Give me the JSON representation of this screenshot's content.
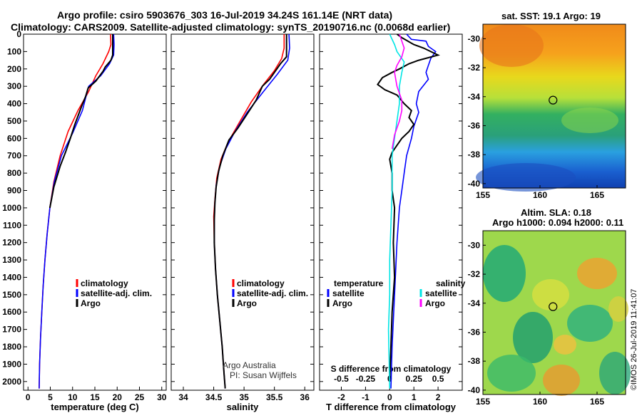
{
  "header": {
    "line1": "Argo profile: csiro 5903676_303 16-Jul-2019 34.24S 161.14E (NRT data)",
    "line2": "Climatology: CARS2009. Satellite-adjusted climatology: synTS_20190716.nc (0.0068d earlier)"
  },
  "credits": {
    "line1": "Argo Australia",
    "line2": "PI: Susan Wijffels"
  },
  "watermark": "©IMOS 26-Jul-2019 11:41:07",
  "colors": {
    "climatology": "#ff0000",
    "satellite": "#0000ff",
    "argo": "#000000",
    "salinity_satellite": "#00e5e5",
    "salinity_argo": "#ff00ff"
  },
  "chart_data": [
    {
      "type": "line",
      "panel": "temperature",
      "xlabel": "temperature (deg C)",
      "xlim": [
        -1,
        31
      ],
      "xticks": [
        0,
        5,
        10,
        15,
        20,
        25,
        30
      ],
      "ylim": [
        2050,
        0
      ],
      "yticks": [
        0,
        100,
        200,
        300,
        400,
        500,
        600,
        700,
        800,
        900,
        1000,
        1100,
        1200,
        1300,
        1400,
        1500,
        1600,
        1700,
        1800,
        1900,
        2000
      ],
      "legend": [
        "climatology",
        "satellite-adj. clim.",
        "Argo"
      ],
      "series": [
        {
          "name": "climatology",
          "color": "#ff0000",
          "points": [
            [
              18.5,
              0
            ],
            [
              18.6,
              60
            ],
            [
              18.1,
              100
            ],
            [
              16.8,
              170
            ],
            [
              15.2,
              240
            ],
            [
              13.6,
              330
            ],
            [
              11.2,
              440
            ],
            [
              9.0,
              560
            ],
            [
              7.2,
              700
            ],
            [
              5.8,
              850
            ],
            [
              4.9,
              1000
            ],
            [
              4.3,
              1150
            ],
            [
              3.8,
              1300
            ],
            [
              3.4,
              1450
            ],
            [
              3.1,
              1600
            ],
            [
              2.8,
              1750
            ],
            [
              2.6,
              1900
            ],
            [
              2.5,
              2040
            ]
          ]
        },
        {
          "name": "satellite-adj. clim.",
          "color": "#0000ff",
          "points": [
            [
              19.2,
              0
            ],
            [
              19.3,
              60
            ],
            [
              19.2,
              120
            ],
            [
              18.3,
              170
            ],
            [
              16.3,
              240
            ],
            [
              13.6,
              300
            ],
            [
              13.0,
              360
            ],
            [
              12.2,
              440
            ],
            [
              10.0,
              570
            ],
            [
              7.5,
              700
            ],
            [
              5.9,
              850
            ],
            [
              4.9,
              1000
            ],
            [
              4.3,
              1150
            ],
            [
              3.8,
              1300
            ],
            [
              3.4,
              1450
            ],
            [
              3.1,
              1600
            ],
            [
              2.8,
              1750
            ],
            [
              2.6,
              1900
            ],
            [
              2.5,
              2040
            ]
          ]
        },
        {
          "name": "Argo",
          "color": "#000000",
          "points": [
            [
              19.0,
              0
            ],
            [
              19.0,
              60
            ],
            [
              19.0,
              120
            ],
            [
              18.6,
              150
            ],
            [
              17.3,
              190
            ],
            [
              16.8,
              215
            ],
            [
              15.2,
              270
            ],
            [
              13.5,
              310
            ],
            [
              12.9,
              360
            ],
            [
              12.1,
              410
            ],
            [
              10.5,
              520
            ],
            [
              9.5,
              600
            ],
            [
              8.4,
              680
            ],
            [
              7.2,
              760
            ],
            [
              5.8,
              880
            ],
            [
              4.9,
              1000
            ]
          ]
        }
      ]
    },
    {
      "type": "line",
      "panel": "salinity",
      "xlabel": "salinity",
      "xlim": [
        33.8,
        36.15
      ],
      "xticks": [
        34,
        34.5,
        35,
        35.5,
        36
      ],
      "ylim": [
        2050,
        0
      ],
      "legend": [
        "climatology",
        "satellite-adj. clim.",
        "Argo"
      ],
      "series": [
        {
          "name": "climatology",
          "color": "#ff0000",
          "points": [
            [
              35.66,
              0
            ],
            [
              35.66,
              80
            ],
            [
              35.62,
              140
            ],
            [
              35.5,
              210
            ],
            [
              35.32,
              290
            ],
            [
              35.12,
              390
            ],
            [
              34.92,
              510
            ],
            [
              34.74,
              620
            ],
            [
              34.62,
              720
            ],
            [
              34.55,
              830
            ],
            [
              34.52,
              950
            ],
            [
              34.5,
              1050
            ],
            [
              34.51,
              1200
            ],
            [
              34.53,
              1350
            ],
            [
              34.56,
              1500
            ],
            [
              34.6,
              1650
            ],
            [
              34.64,
              1800
            ],
            [
              34.67,
              1950
            ],
            [
              34.69,
              2040
            ]
          ]
        },
        {
          "name": "satellite-adj. clim.",
          "color": "#0000ff",
          "points": [
            [
              35.74,
              0
            ],
            [
              35.75,
              80
            ],
            [
              35.72,
              150
            ],
            [
              35.55,
              230
            ],
            [
              35.32,
              330
            ],
            [
              35.05,
              450
            ],
            [
              34.85,
              560
            ],
            [
              34.7,
              660
            ],
            [
              34.6,
              760
            ],
            [
              34.54,
              870
            ],
            [
              34.52,
              970
            ],
            [
              34.51,
              1070
            ],
            [
              34.51,
              1200
            ],
            [
              34.53,
              1350
            ],
            [
              34.56,
              1500
            ],
            [
              34.6,
              1650
            ],
            [
              34.64,
              1800
            ],
            [
              34.67,
              1950
            ],
            [
              34.69,
              2040
            ]
          ]
        },
        {
          "name": "Argo",
          "color": "#000000",
          "points": [
            [
              35.7,
              0
            ],
            [
              35.7,
              80
            ],
            [
              35.7,
              130
            ],
            [
              35.6,
              170
            ],
            [
              35.5,
              220
            ],
            [
              35.42,
              260
            ],
            [
              35.3,
              300
            ],
            [
              35.2,
              380
            ],
            [
              35.05,
              460
            ],
            [
              34.9,
              540
            ],
            [
              34.75,
              610
            ],
            [
              34.65,
              700
            ],
            [
              34.58,
              790
            ],
            [
              34.54,
              880
            ],
            [
              34.52,
              970
            ],
            [
              34.51,
              1070
            ],
            [
              34.51,
              1200
            ],
            [
              34.53,
              1350
            ],
            [
              34.56,
              1500
            ],
            [
              34.6,
              1650
            ],
            [
              34.64,
              1800
            ],
            [
              34.67,
              1950
            ],
            [
              34.69,
              2040
            ]
          ]
        }
      ]
    },
    {
      "type": "line",
      "panel": "difference",
      "xlabel": "T difference from climatology",
      "xlim": [
        -2.9,
        3.0
      ],
      "xticks": [
        -2,
        -1,
        0,
        1,
        2
      ],
      "top_axis_label": "S difference from climatology",
      "top_xticks": [
        "-0.5",
        "-0.25",
        "0",
        "0.25",
        "0.5"
      ],
      "ylim": [
        2050,
        0
      ],
      "legend_headers": [
        "temperature",
        "salinity"
      ],
      "legend": [
        "satellite",
        "Argo",
        "satellite",
        "Argo"
      ],
      "series": [
        {
          "name": "satellite",
          "color": "#0000ff",
          "points": [
            [
              0.7,
              0
            ],
            [
              0.9,
              30
            ],
            [
              1.5,
              40
            ],
            [
              1.6,
              70
            ],
            [
              1.9,
              100
            ],
            [
              1.7,
              140
            ],
            [
              1.6,
              180
            ],
            [
              1.5,
              220
            ],
            [
              1.6,
              260
            ],
            [
              1.2,
              330
            ],
            [
              1.1,
              400
            ],
            [
              1.2,
              450
            ],
            [
              1.0,
              530
            ],
            [
              0.9,
              600
            ],
            [
              0.7,
              700
            ],
            [
              0.6,
              800
            ],
            [
              0.5,
              900
            ],
            [
              0.4,
              1000
            ],
            [
              0.35,
              1100
            ],
            [
              0.3,
              1200
            ],
            [
              0.25,
              1350
            ],
            [
              0.2,
              1500
            ],
            [
              0.15,
              1650
            ],
            [
              0.1,
              1800
            ],
            [
              0.05,
              2040
            ]
          ]
        },
        {
          "name": "Argo",
          "color": "#000000",
          "points": [
            [
              0.3,
              0
            ],
            [
              0.5,
              20
            ],
            [
              1.0,
              60
            ],
            [
              1.4,
              80
            ],
            [
              2.0,
              120
            ],
            [
              1.2,
              150
            ],
            [
              0.8,
              170
            ],
            [
              0.4,
              200
            ],
            [
              0.1,
              220
            ],
            [
              -0.3,
              250
            ],
            [
              -0.5,
              290
            ],
            [
              -0.2,
              320
            ],
            [
              0.3,
              350
            ],
            [
              0.6,
              400
            ],
            [
              0.9,
              440
            ],
            [
              0.8,
              480
            ],
            [
              1.0,
              520
            ],
            [
              0.8,
              560
            ],
            [
              0.5,
              600
            ],
            [
              0.3,
              640
            ],
            [
              0.1,
              680
            ],
            [
              0.0,
              720
            ],
            [
              0.1,
              800
            ],
            [
              0.1,
              900
            ],
            [
              0.2,
              1000
            ],
            [
              0.15,
              1200
            ],
            [
              0.2,
              1400
            ],
            [
              0.1,
              1600
            ],
            [
              0.05,
              1800
            ],
            [
              0.0,
              2000
            ]
          ]
        },
        {
          "name": "salinity satellite",
          "color": "#00e5e5",
          "points": [
            [
              0.0,
              0
            ],
            [
              0.2,
              60
            ],
            [
              0.3,
              100
            ],
            [
              0.6,
              160
            ],
            [
              0.5,
              220
            ],
            [
              0.4,
              300
            ],
            [
              0.4,
              400
            ],
            [
              0.3,
              500
            ],
            [
              0.2,
              600
            ],
            [
              0.1,
              700
            ],
            [
              0.1,
              800
            ],
            [
              0.1,
              900
            ],
            [
              0.05,
              1100
            ],
            [
              0.0,
              1300
            ],
            [
              0.0,
              1500
            ],
            [
              -0.05,
              1700
            ],
            [
              0.0,
              2040
            ]
          ]
        },
        {
          "name": "salinity Argo",
          "color": "#ff00ff",
          "points": [
            [
              0.4,
              0
            ],
            [
              0.5,
              40
            ],
            [
              0.6,
              80
            ],
            [
              0.5,
              130
            ],
            [
              0.3,
              180
            ],
            [
              0.2,
              220
            ],
            [
              0.3,
              300
            ],
            [
              0.5,
              380
            ],
            [
              0.5,
              440
            ],
            [
              0.4,
              500
            ],
            [
              0.2,
              580
            ],
            [
              0.1,
              660
            ]
          ]
        }
      ]
    }
  ],
  "maps": {
    "sst": {
      "title": "sat. SST: 19.1 Argo: 19",
      "xticks": [
        "155",
        "160",
        "165"
      ],
      "yticks": [
        "-30",
        "-32",
        "-34",
        "-36",
        "-38",
        "-40"
      ]
    },
    "sla": {
      "title1": "Altim. SLA: 0.18",
      "title2": "Argo h1000: 0.094 h2000: 0.11",
      "xticks": [
        "155",
        "160",
        "165"
      ],
      "yticks": [
        "-30",
        "-32",
        "-34",
        "-36",
        "-38",
        "-40"
      ]
    }
  }
}
